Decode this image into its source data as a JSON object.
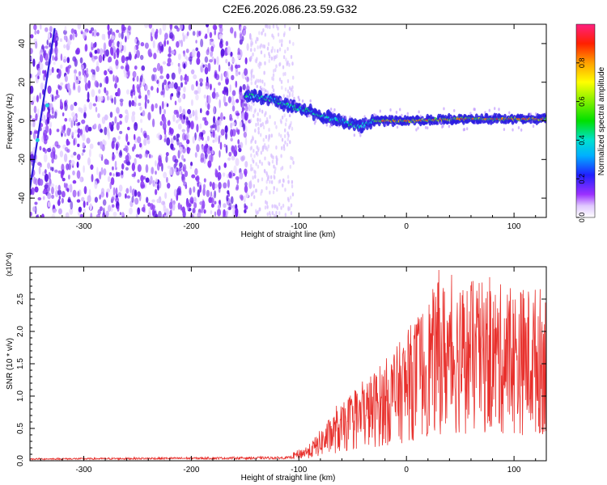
{
  "figure": {
    "title": "C2E6.2026.086.23.59.G32"
  },
  "chart_data": [
    {
      "type": "heatmap",
      "name": "spectrogram",
      "xlabel": "Height of straight line (km)",
      "ylabel": "Frequency (Hz)",
      "xlim": [
        -350,
        130
      ],
      "ylim": [
        -50,
        50
      ],
      "x_ticks": [
        -300,
        -200,
        -100,
        0,
        100
      ],
      "x_tick_labels": [
        "-300",
        "-200",
        "-100",
        "0",
        "100"
      ],
      "y_ticks": [
        -40,
        -20,
        0,
        20,
        40
      ],
      "y_tick_labels": [
        "-40",
        "-20",
        "0",
        "20",
        "40"
      ],
      "ridge": {
        "x": [
          -150,
          -130,
          -110,
          -90,
          -75,
          -60,
          -45,
          -30,
          0,
          50,
          130
        ],
        "y": [
          13,
          12,
          8,
          5,
          2,
          0,
          -3,
          0,
          0,
          1,
          1
        ]
      },
      "noise_region_x": [
        -350,
        -145
      ],
      "colorbar": {
        "label": "Normalized spectral amplitude",
        "range": [
          0,
          1
        ],
        "ticks": [
          0.0,
          0.2,
          0.4,
          0.6,
          0.8
        ],
        "tick_labels": [
          "0.0",
          "0.2",
          "0.4",
          "0.6",
          "0.8"
        ]
      }
    },
    {
      "type": "line",
      "name": "snr",
      "xlabel": "Height of straight line (km)",
      "ylabel": "SNR (10 * v/v)",
      "y_multiplier": "(x10^4)",
      "xlim": [
        -350,
        130
      ],
      "ylim": [
        0,
        3.0
      ],
      "x_ticks": [
        -300,
        -200,
        -100,
        0,
        100
      ],
      "x_tick_labels": [
        "-300",
        "-200",
        "-100",
        "0",
        "100"
      ],
      "y_ticks": [
        0.0,
        0.5,
        1.0,
        1.5,
        2.0,
        2.5
      ],
      "y_tick_labels": [
        "0.0",
        "0.5",
        "1.0",
        "1.5",
        "2.0",
        "2.5"
      ],
      "color": "#e8302c",
      "envelope": {
        "x": [
          -350,
          -110,
          -90,
          -70,
          -50,
          -30,
          -10,
          10,
          30,
          60,
          100,
          130
        ],
        "y": [
          0.03,
          0.05,
          0.15,
          0.4,
          0.6,
          0.8,
          1.0,
          1.3,
          1.6,
          1.6,
          1.55,
          1.55
        ]
      },
      "peaks": [
        {
          "x": 30,
          "y": 2.95
        },
        {
          "x": 50,
          "y": 2.6
        },
        {
          "x": 22,
          "y": 2.1
        },
        {
          "x": -65,
          "y": 0.85
        }
      ]
    }
  ]
}
